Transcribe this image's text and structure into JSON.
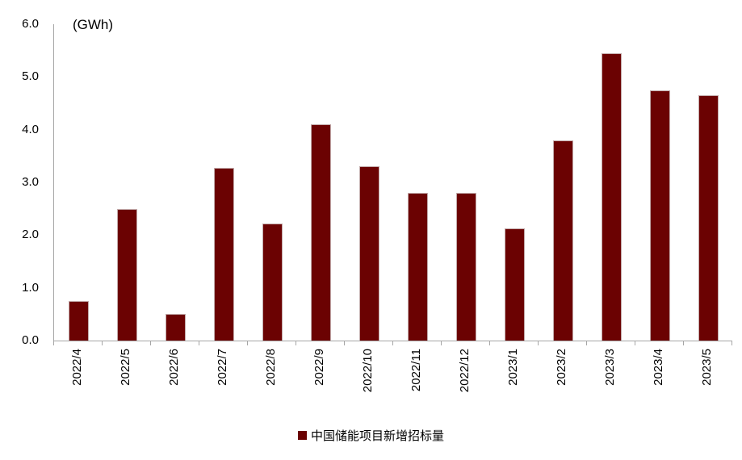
{
  "chart_data": {
    "type": "bar",
    "title": "",
    "unit_label": "(GWh)",
    "categories": [
      "2022/4",
      "2022/5",
      "2022/6",
      "2022/7",
      "2022/8",
      "2022/9",
      "2022/10",
      "2022/11",
      "2022/12",
      "2023/1",
      "2023/2",
      "2023/3",
      "2023/4",
      "2023/5"
    ],
    "values": [
      0.75,
      2.5,
      0.5,
      3.27,
      2.22,
      4.1,
      3.3,
      2.8,
      2.8,
      2.13,
      3.8,
      5.45,
      4.75,
      4.65
    ],
    "series": [
      {
        "name": "中国储能项目新增招标量",
        "values": [
          0.75,
          2.5,
          0.5,
          3.27,
          2.22,
          4.1,
          3.3,
          2.8,
          2.8,
          2.13,
          3.8,
          5.45,
          4.75,
          4.65
        ]
      }
    ],
    "xlabel": "",
    "ylabel": "(GWh)",
    "ylim": [
      0,
      6
    ],
    "ytick_step": 1.0,
    "ytick_labels": [
      "0.0",
      "1.0",
      "2.0",
      "3.0",
      "4.0",
      "5.0",
      "6.0"
    ],
    "grid": false,
    "legend_position": "bottom-center",
    "colors": {
      "bar": "#6b0202",
      "bar_border": "#c2a9a9",
      "axis": "#a6a6a6",
      "text": "#000000",
      "background": "#ffffff"
    }
  },
  "legend": {
    "label": "中国储能项目新增招标量"
  }
}
